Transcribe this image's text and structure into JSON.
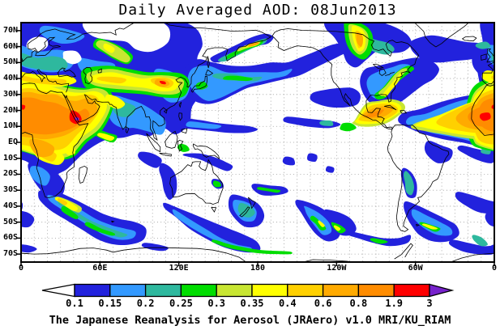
{
  "title": "Daily Averaged AOD: 08Jun2013",
  "caption": "The Japanese Reanalysis for Aerosol (JRAero) v1.0 MRI/KU_RIAM",
  "y_axis_labels": [
    {
      "text": "70N",
      "lat": 70
    },
    {
      "text": "60N",
      "lat": 60
    },
    {
      "text": "50N",
      "lat": 50
    },
    {
      "text": "40N",
      "lat": 40
    },
    {
      "text": "30N",
      "lat": 30
    },
    {
      "text": "20N",
      "lat": 20
    },
    {
      "text": "10N",
      "lat": 10
    },
    {
      "text": "EQ",
      "lat": 0
    },
    {
      "text": "10S",
      "lat": -10
    },
    {
      "text": "20S",
      "lat": -20
    },
    {
      "text": "30S",
      "lat": -30
    },
    {
      "text": "40S",
      "lat": -40
    },
    {
      "text": "50S",
      "lat": -50
    },
    {
      "text": "60S",
      "lat": -60
    },
    {
      "text": "70S",
      "lat": -70
    }
  ],
  "x_axis_labels": [
    {
      "text": "0",
      "lon": 0
    },
    {
      "text": "60E",
      "lon": 60
    },
    {
      "text": "120E",
      "lon": 120
    },
    {
      "text": "180",
      "lon": 180
    },
    {
      "text": "120W",
      "lon": 240
    },
    {
      "text": "60W",
      "lon": 300
    },
    {
      "text": "0",
      "lon": 360
    }
  ],
  "colorbar": {
    "tick_labels": [
      "0.1",
      "0.15",
      "0.2",
      "0.25",
      "0.3",
      "0.35",
      "0.4",
      "0.6",
      "0.8",
      "1.9",
      "3"
    ],
    "segment_colors": [
      "#2222dd",
      "#3399ff",
      "#2eb89e",
      "#00dd00",
      "#c8e632",
      "#ffff00",
      "#ffd000",
      "#ffaa00",
      "#ff8c00",
      "#ff0000"
    ],
    "below_min_color": "#ffffff",
    "above_max_color": "#7722cc"
  }
}
